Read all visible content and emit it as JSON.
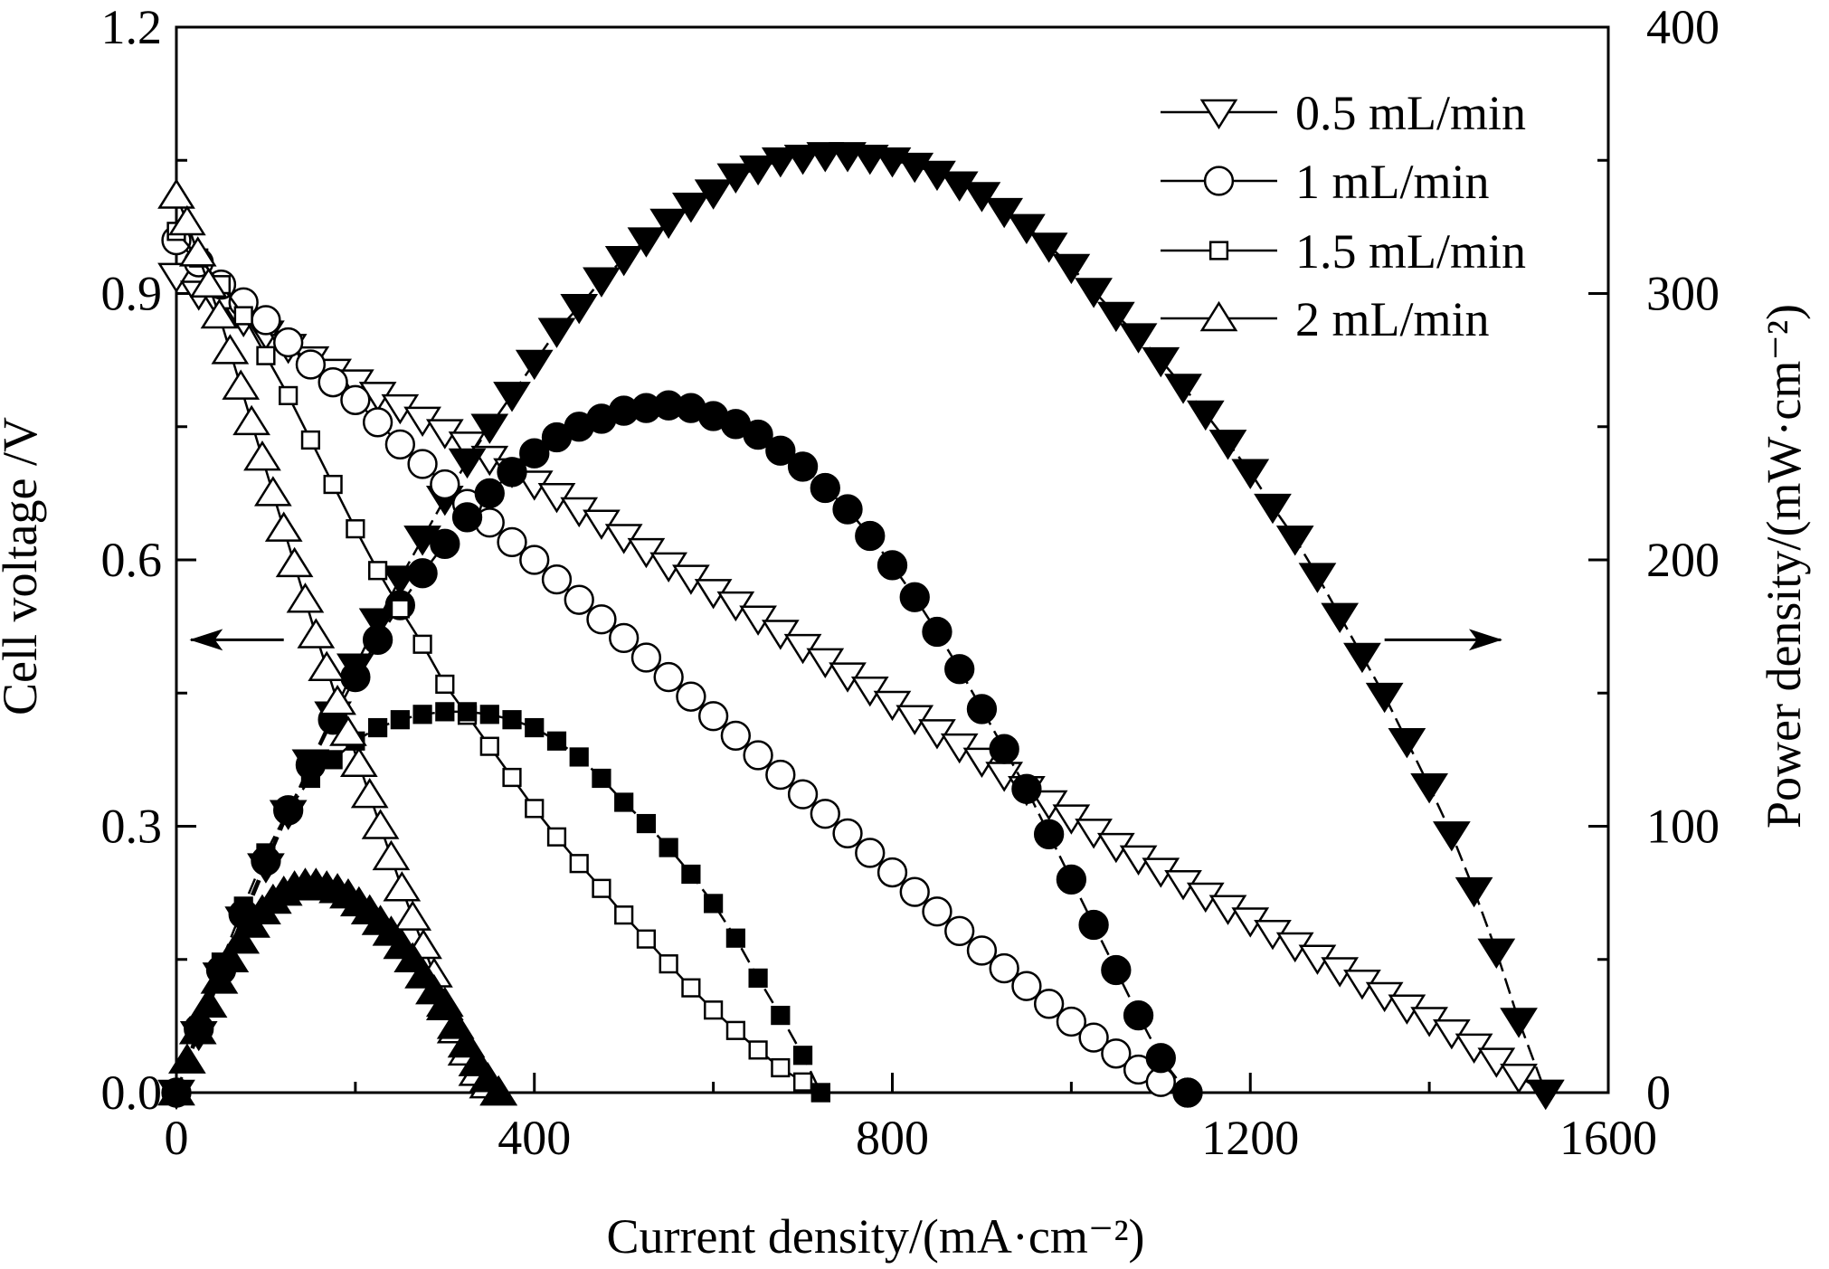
{
  "chart_data": {
    "type": "line",
    "xlabel": "Current density/(mA·cm⁻²)",
    "ylabel_left": "Cell voltage /V",
    "ylabel_right": "Power density/(mW·cm⁻²)",
    "xlim": [
      0,
      1600
    ],
    "ylim_left": [
      0,
      1.2
    ],
    "ylim_right": [
      0,
      400
    ],
    "xticks": [
      0,
      400,
      800,
      1200,
      1600
    ],
    "xtick_labels": [
      "0",
      "400",
      "800",
      "1200",
      "1600"
    ],
    "yticks_left": [
      0,
      0.3,
      0.6,
      0.9,
      1.2
    ],
    "ytick_labels_left": [
      "0.0",
      "0.3",
      "0.6",
      "0.9",
      "1.2"
    ],
    "yticks_right": [
      0,
      100,
      200,
      300,
      400
    ],
    "ytick_labels_right": [
      "0",
      "100",
      "200",
      "300",
      "400"
    ],
    "grid": false,
    "legend_position": "top-right",
    "annotations": [
      {
        "type": "arrow",
        "direction": "left",
        "axis": "left",
        "x_from": 120,
        "x_to": 0,
        "y": 0.51
      },
      {
        "type": "arrow",
        "direction": "right",
        "axis": "right",
        "x_from": 1350,
        "x_to": 1480,
        "y": 170
      }
    ],
    "series": [
      {
        "name": "0.5 mL/min",
        "marker": "triangle-down",
        "voltage": {
          "x": [
            0,
            25,
            50,
            75,
            100,
            125,
            150,
            175,
            200,
            225,
            250,
            275,
            300,
            325,
            350,
            375,
            400,
            425,
            450,
            475,
            500,
            525,
            550,
            575,
            600,
            625,
            650,
            675,
            700,
            725,
            750,
            775,
            800,
            825,
            850,
            875,
            900,
            925,
            950,
            975,
            1000,
            1025,
            1050,
            1075,
            1100,
            1125,
            1150,
            1175,
            1200,
            1225,
            1250,
            1275,
            1300,
            1325,
            1350,
            1375,
            1400,
            1425,
            1450,
            1475,
            1500,
            1530
          ],
          "y": [
            0.92,
            0.9,
            0.885,
            0.87,
            0.855,
            0.84,
            0.826,
            0.812,
            0.8,
            0.786,
            0.772,
            0.758,
            0.744,
            0.73,
            0.714,
            0.7,
            0.686,
            0.672,
            0.656,
            0.642,
            0.626,
            0.61,
            0.594,
            0.58,
            0.564,
            0.55,
            0.534,
            0.518,
            0.502,
            0.486,
            0.47,
            0.454,
            0.438,
            0.422,
            0.406,
            0.39,
            0.374,
            0.358,
            0.342,
            0.326,
            0.31,
            0.294,
            0.278,
            0.264,
            0.25,
            0.236,
            0.222,
            0.208,
            0.194,
            0.18,
            0.166,
            0.152,
            0.138,
            0.124,
            0.11,
            0.096,
            0.082,
            0.068,
            0.052,
            0.036,
            0.018,
            0.0
          ]
        },
        "power": {
          "x": [
            0,
            25,
            50,
            75,
            100,
            125,
            150,
            175,
            200,
            225,
            250,
            275,
            300,
            325,
            350,
            375,
            400,
            425,
            450,
            475,
            500,
            525,
            550,
            575,
            600,
            625,
            650,
            675,
            700,
            725,
            750,
            775,
            800,
            825,
            850,
            875,
            900,
            925,
            950,
            975,
            1000,
            1025,
            1050,
            1075,
            1100,
            1125,
            1150,
            1175,
            1200,
            1225,
            1250,
            1275,
            1300,
            1325,
            1350,
            1375,
            1400,
            1425,
            1450,
            1475,
            1500,
            1530
          ],
          "y": [
            0,
            22,
            44,
            65,
            85,
            105,
            124,
            142,
            160,
            177,
            193,
            208,
            223,
            237,
            250,
            262,
            274,
            286,
            295,
            305,
            313,
            320,
            327,
            333,
            338,
            344,
            347,
            350,
            351,
            352,
            352,
            351,
            350,
            348,
            345,
            341,
            337,
            331,
            325,
            318,
            310,
            301,
            292,
            284,
            275,
            265,
            255,
            244,
            233,
            220,
            208,
            194,
            179,
            164,
            149,
            132,
            115,
            97,
            76,
            53,
            27,
            0
          ]
        }
      },
      {
        "name": "1 mL/min",
        "marker": "circle",
        "voltage": {
          "x": [
            0,
            25,
            50,
            75,
            100,
            125,
            150,
            175,
            200,
            225,
            250,
            275,
            300,
            325,
            350,
            375,
            400,
            425,
            450,
            475,
            500,
            525,
            550,
            575,
            600,
            625,
            650,
            675,
            700,
            725,
            750,
            775,
            800,
            825,
            850,
            875,
            900,
            925,
            950,
            975,
            1000,
            1025,
            1050,
            1075,
            1100,
            1130
          ],
          "y": [
            0.96,
            0.935,
            0.91,
            0.89,
            0.87,
            0.845,
            0.82,
            0.8,
            0.78,
            0.755,
            0.73,
            0.708,
            0.685,
            0.663,
            0.642,
            0.62,
            0.6,
            0.578,
            0.555,
            0.533,
            0.512,
            0.49,
            0.468,
            0.446,
            0.424,
            0.402,
            0.38,
            0.358,
            0.336,
            0.314,
            0.292,
            0.27,
            0.248,
            0.226,
            0.204,
            0.182,
            0.16,
            0.14,
            0.12,
            0.1,
            0.08,
            0.062,
            0.044,
            0.026,
            0.012,
            0.0
          ]
        },
        "power": {
          "x": [
            0,
            25,
            50,
            75,
            100,
            125,
            150,
            175,
            200,
            225,
            250,
            275,
            300,
            325,
            350,
            375,
            400,
            425,
            450,
            475,
            500,
            525,
            550,
            575,
            600,
            625,
            650,
            675,
            700,
            725,
            750,
            775,
            800,
            825,
            850,
            875,
            900,
            925,
            950,
            975,
            1000,
            1025,
            1050,
            1075,
            1100,
            1130
          ],
          "y": [
            0,
            24,
            46,
            67,
            87,
            106,
            123,
            140,
            156,
            170,
            183,
            195,
            206,
            216,
            225,
            233,
            240,
            246,
            250,
            253,
            256,
            257,
            258,
            257,
            254,
            251,
            247,
            241,
            235,
            227,
            219,
            209,
            198,
            186,
            173,
            159,
            144,
            129,
            114,
            97,
            80,
            63,
            46,
            29,
            13,
            0
          ]
        }
      },
      {
        "name": "1.5 mL/min",
        "marker": "square",
        "voltage": {
          "x": [
            0,
            25,
            50,
            75,
            100,
            125,
            150,
            175,
            200,
            225,
            250,
            275,
            300,
            325,
            350,
            375,
            400,
            425,
            450,
            475,
            500,
            525,
            550,
            575,
            600,
            625,
            650,
            675,
            700,
            720
          ],
          "y": [
            0.97,
            0.94,
            0.91,
            0.875,
            0.83,
            0.785,
            0.735,
            0.685,
            0.635,
            0.588,
            0.545,
            0.505,
            0.46,
            0.425,
            0.39,
            0.355,
            0.32,
            0.288,
            0.258,
            0.23,
            0.2,
            0.173,
            0.145,
            0.118,
            0.093,
            0.07,
            0.048,
            0.028,
            0.012,
            0.0
          ]
        },
        "power": {
          "x": [
            0,
            25,
            50,
            75,
            100,
            125,
            150,
            175,
            200,
            225,
            250,
            275,
            300,
            325,
            350,
            375,
            400,
            425,
            450,
            475,
            500,
            525,
            550,
            575,
            600,
            625,
            650,
            675,
            700,
            720
          ],
          "y": [
            0,
            25,
            49,
            70,
            90,
            106,
            118,
            125,
            132,
            137,
            140,
            142,
            143,
            143,
            142,
            140,
            137,
            132,
            126,
            118,
            109,
            101,
            92,
            82,
            71,
            58,
            43,
            29,
            14,
            0
          ]
        }
      },
      {
        "name": "2 mL/min",
        "marker": "triangle-up",
        "voltage": {
          "x": [
            0,
            12,
            24,
            36,
            48,
            60,
            72,
            84,
            96,
            108,
            120,
            132,
            144,
            156,
            168,
            180,
            192,
            204,
            216,
            228,
            240,
            252,
            264,
            276,
            288,
            300,
            312,
            324,
            336,
            348,
            360
          ],
          "y": [
            1.01,
            0.98,
            0.945,
            0.91,
            0.875,
            0.835,
            0.795,
            0.755,
            0.715,
            0.675,
            0.635,
            0.595,
            0.555,
            0.515,
            0.478,
            0.44,
            0.405,
            0.37,
            0.335,
            0.3,
            0.265,
            0.23,
            0.197,
            0.165,
            0.133,
            0.1,
            0.07,
            0.045,
            0.022,
            0.008,
            0.0
          ]
        },
        "power": {
          "x": [
            0,
            12,
            24,
            36,
            48,
            60,
            72,
            84,
            96,
            108,
            120,
            132,
            144,
            156,
            168,
            180,
            192,
            204,
            216,
            228,
            240,
            252,
            264,
            276,
            288,
            300,
            312,
            324,
            336,
            348,
            360
          ],
          "y": [
            0,
            12,
            23,
            33,
            42,
            50,
            57,
            63,
            68,
            72,
            75,
            77,
            78,
            78,
            77,
            76,
            74,
            71,
            68,
            64,
            60,
            55,
            50,
            44,
            38,
            32,
            25,
            18,
            11,
            5,
            0
          ]
        }
      }
    ]
  }
}
